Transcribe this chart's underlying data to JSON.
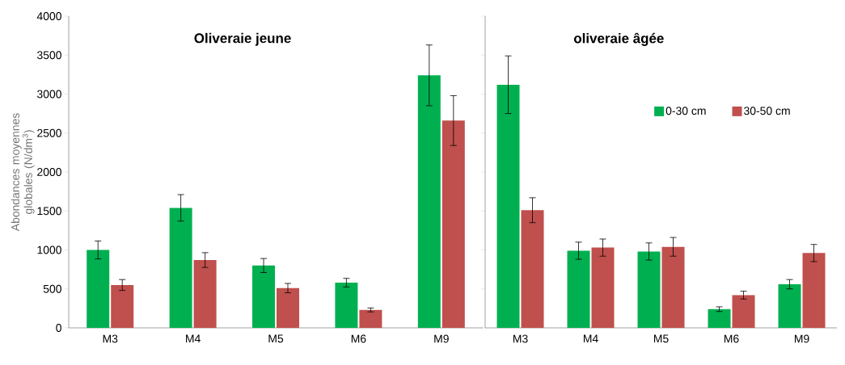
{
  "chart_data": [
    {
      "type": "bar",
      "title": "**Oliveraie jeune**",
      "ylabel": "Abondances moyennes globales (N/dm$^{3}$)",
      "categories": [
        "M3",
        "M4",
        "M5",
        "M6",
        "M9"
      ],
      "series": [
        {
          "color": "#00b050",
          "values": [
            1000,
            1540,
            800,
            580,
            3240
          ],
          "errors": [
            115,
            170,
            90,
            55,
            390
          ]
        },
        {
          "color": "#c0504d",
          "values": [
            550,
            870,
            510,
            230,
            2660
          ],
          "errors": [
            70,
            95,
            60,
            25,
            320
          ]
        }
      ],
      "ylim": [
        0,
        4000
      ],
      "yticks": [
        0,
        500,
        1000,
        1500,
        2000,
        2500,
        3000,
        3500,
        4000
      ]
    },
    {
      "type": "bar",
      "title": "**oliveraie  âgée**",
      "categories": [
        "M3",
        "M4",
        "M5",
        "M6",
        "M9"
      ],
      "series": [
        {
          "name": "0-30 cm",
          "color": "#00b050",
          "values": [
            3120,
            990,
            980,
            240,
            560
          ],
          "errors": [
            370,
            110,
            110,
            30,
            60
          ]
        },
        {
          "name": "30-50 cm",
          "color": "#c0504d",
          "values": [
            1510,
            1030,
            1040,
            420,
            960
          ],
          "errors": [
            160,
            110,
            120,
            50,
            110
          ]
        }
      ],
      "ylim": [
        0,
        4000
      ],
      "yticks": [
        0,
        500,
        1000,
        1500,
        2000,
        2500,
        3000,
        3500,
        4000
      ],
      "tick_labels": "x",
      "legend": "top right"
    }
  ]
}
